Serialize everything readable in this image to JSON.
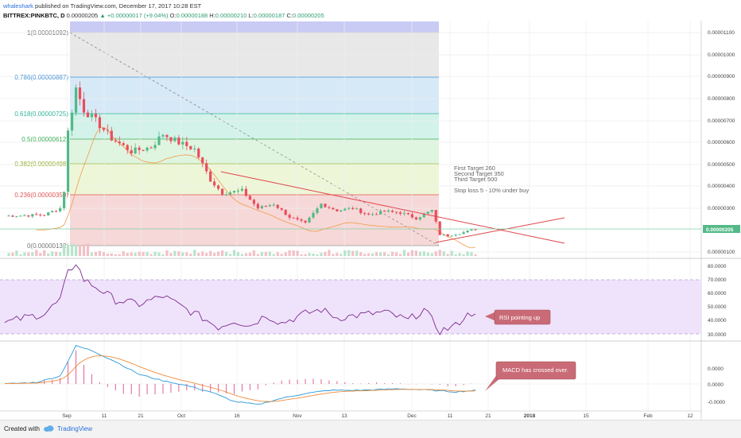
{
  "header": {
    "author": "whaleshark",
    "published": "published on TradingView.com, December 17, 2017 10:28 EST",
    "symbol": "BITTREX:PINKBTC, D",
    "last": "0.00000205",
    "change": "▲ +0.00000017 (+9.04%)",
    "o_label": "O:",
    "o": "0.00000188",
    "h_label": "H:",
    "h": "0.00000210",
    "l_label": "L:",
    "l": "0.00000187",
    "c_label": "C:",
    "c": "0.00000205"
  },
  "footer": {
    "created": "Created with",
    "brand": "TradingView"
  },
  "colors": {
    "up": "#53b987",
    "down": "#eb4d5c",
    "trend": "#e0454b",
    "rsi_line": "#7d2a8f",
    "rsi_band": "#efe3fb",
    "macd": "#2a9ad8",
    "signal": "#f08c3a",
    "hist": "#e0609a",
    "callout": "#c96b76"
  },
  "chart_data": {
    "type": "candlestick",
    "price_axis": {
      "ticks": [
        "0.00001100",
        "0.00001000",
        "0.00000900",
        "0.00000800",
        "0.00000700",
        "0.00000600",
        "0.00000500",
        "0.00000400",
        "0.00000300",
        "0.00000100"
      ],
      "current": "0.00000205"
    },
    "x_axis": {
      "ticks": [
        "Sep",
        "11",
        "21",
        "Oct",
        "16",
        "Nov",
        "13",
        "Dec",
        "11",
        "21",
        "2018",
        "15",
        "Feb",
        "12"
      ]
    },
    "fib_levels": [
      {
        "label": "1(0.00001092)",
        "value": 1.092e-05
      },
      {
        "label": "0.786(0.00000887)",
        "value": 8.87e-06
      },
      {
        "label": "0.618(0.00000725)",
        "value": 7.25e-06
      },
      {
        "label": "0.5(0.00000612)",
        "value": 6.12e-06
      },
      {
        "label": "0.382(0.00000498)",
        "value": 4.98e-06
      },
      {
        "label": "0.236(0.00000359)",
        "value": 3.59e-06
      },
      {
        "label": "0(0.00000132)",
        "value": 1.32e-06
      }
    ],
    "notes": [
      "First Target 260",
      "Second Target 350",
      "Third Target 500",
      "Stop loss 5 - 10% under buy"
    ],
    "rsi": {
      "ticks": [
        "80.0000",
        "70.0000",
        "60.0000",
        "50.0000",
        "40.0000",
        "30.0000"
      ],
      "upper": 70,
      "lower": 30,
      "callout": "RSI pointing up"
    },
    "macd": {
      "ticks": [
        "0.0000",
        "0.0000",
        "-0.0000"
      ],
      "callout": "MACD has crossed over."
    }
  }
}
